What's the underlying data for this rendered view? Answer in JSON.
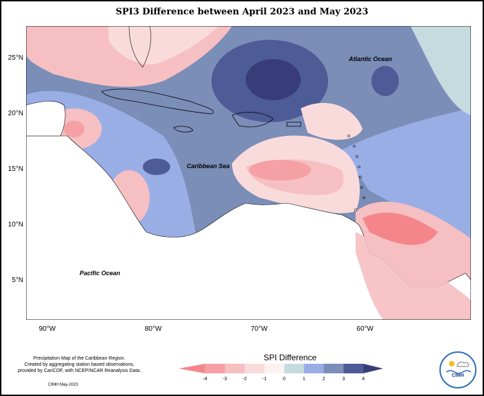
{
  "title": "SPI3 Difference between April 2023 and May 2023",
  "axes": {
    "lat_ticks": [
      {
        "label": "25°N",
        "y": 25
      },
      {
        "label": "20°N",
        "y": 20
      },
      {
        "label": "15°N",
        "y": 15
      },
      {
        "label": "10°N",
        "y": 10
      },
      {
        "label": "5°N",
        "y": 5
      }
    ],
    "lon_ticks": [
      {
        "label": "90°W",
        "x": -90
      },
      {
        "label": "80°W",
        "x": -80
      },
      {
        "label": "70°W",
        "x": -70
      },
      {
        "label": "60°W",
        "x": -60
      }
    ]
  },
  "map_labels": {
    "atlantic": "Atlantic Ocean",
    "pacific": "Pacific Ocean",
    "caribbean": "Caribbean Sea"
  },
  "legend": {
    "title": "SPI Difference",
    "ticks": [
      "-4",
      "-3",
      "-2",
      "-1",
      "0",
      "1",
      "2",
      "3",
      "4"
    ],
    "colors": [
      "#f4868b",
      "#f5a0a5",
      "#f6bfc2",
      "#fadbdc",
      "#fdf1f1",
      "#c6dbe0",
      "#9aaee6",
      "#7b8eb8",
      "#4d5b96",
      "#383d7a"
    ]
  },
  "credit": {
    "line1": "Precipitation Map of the Caribbean Region.",
    "line2": "Created by aggregating station based observations,",
    "line3": "provided by CariCOF, with NCEP/NCAR Reanalysis Data.",
    "date": "CIMH May-2023"
  },
  "logo_text": "CIMH"
}
